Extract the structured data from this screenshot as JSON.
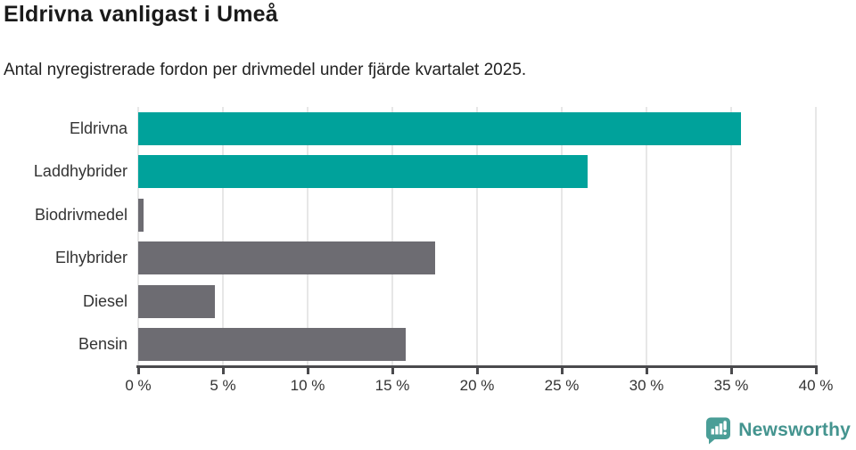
{
  "header": {
    "title": "Eldrivna vanligast i Umeå",
    "subtitle": "Antal nyregistrerade fordon per drivmedel under fjärde kvartalet 2025."
  },
  "chart_data": {
    "type": "bar",
    "orientation": "horizontal",
    "title": "Eldrivna vanligast i Umeå",
    "subtitle": "Antal nyregistrerade fordon per drivmedel under fjärde kvartalet 2025.",
    "categories": [
      "Eldrivna",
      "Laddhybrider",
      "Biodrivmedel",
      "Elhybrider",
      "Diesel",
      "Bensin"
    ],
    "values": [
      35.6,
      26.5,
      0.3,
      17.5,
      4.5,
      15.8
    ],
    "unit": "%",
    "bar_colors": [
      "#00a29b",
      "#00a29b",
      "#6d6c72",
      "#6d6c72",
      "#6d6c72",
      "#6d6c72"
    ],
    "xlim": [
      0,
      40
    ],
    "x_ticks": [
      0,
      5,
      10,
      15,
      20,
      25,
      30,
      35,
      40
    ],
    "x_tick_labels": [
      "0 %",
      "5 %",
      "10 %",
      "15 %",
      "20 %",
      "25 %",
      "30 %",
      "35 %",
      "40 %"
    ],
    "xlabel": "",
    "ylabel": "",
    "grid": true,
    "legend_position": "none",
    "colors": {
      "highlight": "#00a29b",
      "neutral": "#6d6c72",
      "gridline": "#e7e7e7",
      "axis": "#4a4a4d",
      "text": "#333333"
    }
  },
  "footer": {
    "brand": "Newsworthy",
    "brand_text_color": "#44948f",
    "brand_icon_color": "#4a9e97",
    "logo_icon": "newsworthy-chart-bubble-icon"
  }
}
